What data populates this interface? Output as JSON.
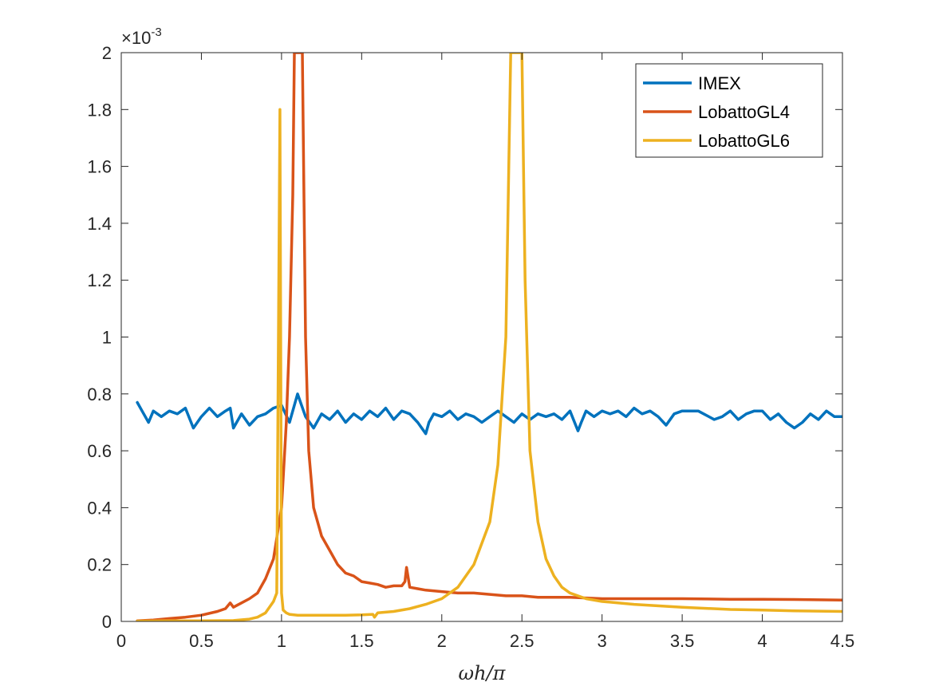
{
  "chart_data": {
    "type": "line",
    "xlabel": "ωh/π",
    "ylabel": "",
    "xlim": [
      0,
      4.5
    ],
    "ylim": [
      0,
      2
    ],
    "y_exponent_label": "×10",
    "y_exponent_power": "-3",
    "xticks": [
      "0",
      "0.5",
      "1",
      "1.5",
      "2",
      "2.5",
      "3",
      "3.5",
      "4",
      "4.5"
    ],
    "yticks": [
      "0",
      "0.2",
      "0.4",
      "0.6",
      "0.8",
      "1",
      "1.2",
      "1.4",
      "1.6",
      "1.8",
      "2"
    ],
    "grid": false,
    "legend_position": "top-right",
    "series": [
      {
        "name": "IMEX",
        "color": "#0072BD",
        "x": [
          0.1,
          0.13,
          0.17,
          0.2,
          0.25,
          0.3,
          0.35,
          0.4,
          0.45,
          0.5,
          0.55,
          0.6,
          0.65,
          0.68,
          0.7,
          0.75,
          0.8,
          0.85,
          0.9,
          0.95,
          1.0,
          1.05,
          1.1,
          1.15,
          1.2,
          1.25,
          1.3,
          1.35,
          1.4,
          1.45,
          1.5,
          1.55,
          1.6,
          1.65,
          1.7,
          1.75,
          1.8,
          1.85,
          1.9,
          1.92,
          1.95,
          2.0,
          2.05,
          2.1,
          2.15,
          2.2,
          2.25,
          2.3,
          2.35,
          2.4,
          2.45,
          2.5,
          2.55,
          2.6,
          2.65,
          2.7,
          2.75,
          2.8,
          2.85,
          2.87,
          2.9,
          2.95,
          3.0,
          3.05,
          3.1,
          3.15,
          3.2,
          3.25,
          3.3,
          3.35,
          3.4,
          3.45,
          3.5,
          3.6,
          3.7,
          3.75,
          3.8,
          3.85,
          3.9,
          3.95,
          4.0,
          4.05,
          4.1,
          4.15,
          4.2,
          4.25,
          4.3,
          4.35,
          4.4,
          4.45,
          4.5
        ],
        "values": [
          0.77,
          0.74,
          0.7,
          0.74,
          0.72,
          0.74,
          0.73,
          0.75,
          0.68,
          0.72,
          0.75,
          0.72,
          0.74,
          0.75,
          0.68,
          0.73,
          0.69,
          0.72,
          0.73,
          0.75,
          0.76,
          0.7,
          0.8,
          0.72,
          0.68,
          0.73,
          0.71,
          0.74,
          0.7,
          0.73,
          0.71,
          0.74,
          0.72,
          0.75,
          0.71,
          0.74,
          0.73,
          0.7,
          0.66,
          0.7,
          0.73,
          0.72,
          0.74,
          0.71,
          0.73,
          0.72,
          0.7,
          0.72,
          0.74,
          0.72,
          0.7,
          0.73,
          0.71,
          0.73,
          0.72,
          0.73,
          0.71,
          0.74,
          0.67,
          0.7,
          0.74,
          0.72,
          0.74,
          0.73,
          0.74,
          0.72,
          0.75,
          0.73,
          0.74,
          0.72,
          0.69,
          0.73,
          0.74,
          0.74,
          0.71,
          0.72,
          0.74,
          0.71,
          0.73,
          0.74,
          0.74,
          0.71,
          0.73,
          0.7,
          0.68,
          0.7,
          0.73,
          0.71,
          0.74,
          0.72,
          0.72
        ]
      },
      {
        "name": "LobattoGL4",
        "color": "#D95319",
        "x": [
          0.1,
          0.2,
          0.3,
          0.4,
          0.5,
          0.6,
          0.65,
          0.68,
          0.7,
          0.75,
          0.8,
          0.85,
          0.9,
          0.95,
          1.0,
          1.03,
          1.05,
          1.07,
          1.08,
          1.13,
          1.15,
          1.17,
          1.2,
          1.25,
          1.3,
          1.35,
          1.4,
          1.45,
          1.5,
          1.55,
          1.6,
          1.65,
          1.7,
          1.75,
          1.77,
          1.78,
          1.8,
          1.85,
          1.9,
          2.0,
          2.1,
          2.2,
          2.3,
          2.4,
          2.5,
          2.6,
          2.8,
          3.0,
          3.2,
          3.5,
          3.8,
          4.0,
          4.2,
          4.5
        ],
        "values": [
          0.002,
          0.005,
          0.01,
          0.015,
          0.022,
          0.035,
          0.045,
          0.065,
          0.05,
          0.065,
          0.08,
          0.1,
          0.15,
          0.22,
          0.4,
          0.7,
          1.0,
          1.5,
          2.0,
          2.0,
          1.0,
          0.6,
          0.4,
          0.3,
          0.25,
          0.2,
          0.17,
          0.16,
          0.14,
          0.135,
          0.13,
          0.12,
          0.125,
          0.125,
          0.14,
          0.19,
          0.12,
          0.115,
          0.11,
          0.105,
          0.1,
          0.1,
          0.095,
          0.09,
          0.09,
          0.085,
          0.085,
          0.08,
          0.08,
          0.08,
          0.078,
          0.078,
          0.077,
          0.075
        ]
      },
      {
        "name": "LobattoGL6",
        "color": "#EDB120",
        "x": [
          0.1,
          0.3,
          0.5,
          0.7,
          0.8,
          0.85,
          0.9,
          0.95,
          0.97,
          0.99,
          1.0,
          1.01,
          1.03,
          1.05,
          1.1,
          1.2,
          1.3,
          1.4,
          1.5,
          1.57,
          1.58,
          1.6,
          1.7,
          1.8,
          1.9,
          2.0,
          2.1,
          2.2,
          2.3,
          2.35,
          2.4,
          2.43,
          2.45,
          2.5,
          2.52,
          2.55,
          2.6,
          2.65,
          2.7,
          2.75,
          2.8,
          2.9,
          3.0,
          3.2,
          3.5,
          3.8,
          4.0,
          4.2,
          4.5
        ],
        "values": [
          0.001,
          0.002,
          0.002,
          0.003,
          0.008,
          0.015,
          0.03,
          0.07,
          0.1,
          1.8,
          0.1,
          0.04,
          0.03,
          0.025,
          0.022,
          0.022,
          0.022,
          0.022,
          0.023,
          0.025,
          0.015,
          0.03,
          0.035,
          0.045,
          0.06,
          0.08,
          0.12,
          0.2,
          0.35,
          0.55,
          1.0,
          2.0,
          2.0,
          2.0,
          1.2,
          0.6,
          0.35,
          0.22,
          0.16,
          0.12,
          0.1,
          0.08,
          0.07,
          0.06,
          0.05,
          0.042,
          0.04,
          0.037,
          0.035
        ]
      }
    ]
  }
}
